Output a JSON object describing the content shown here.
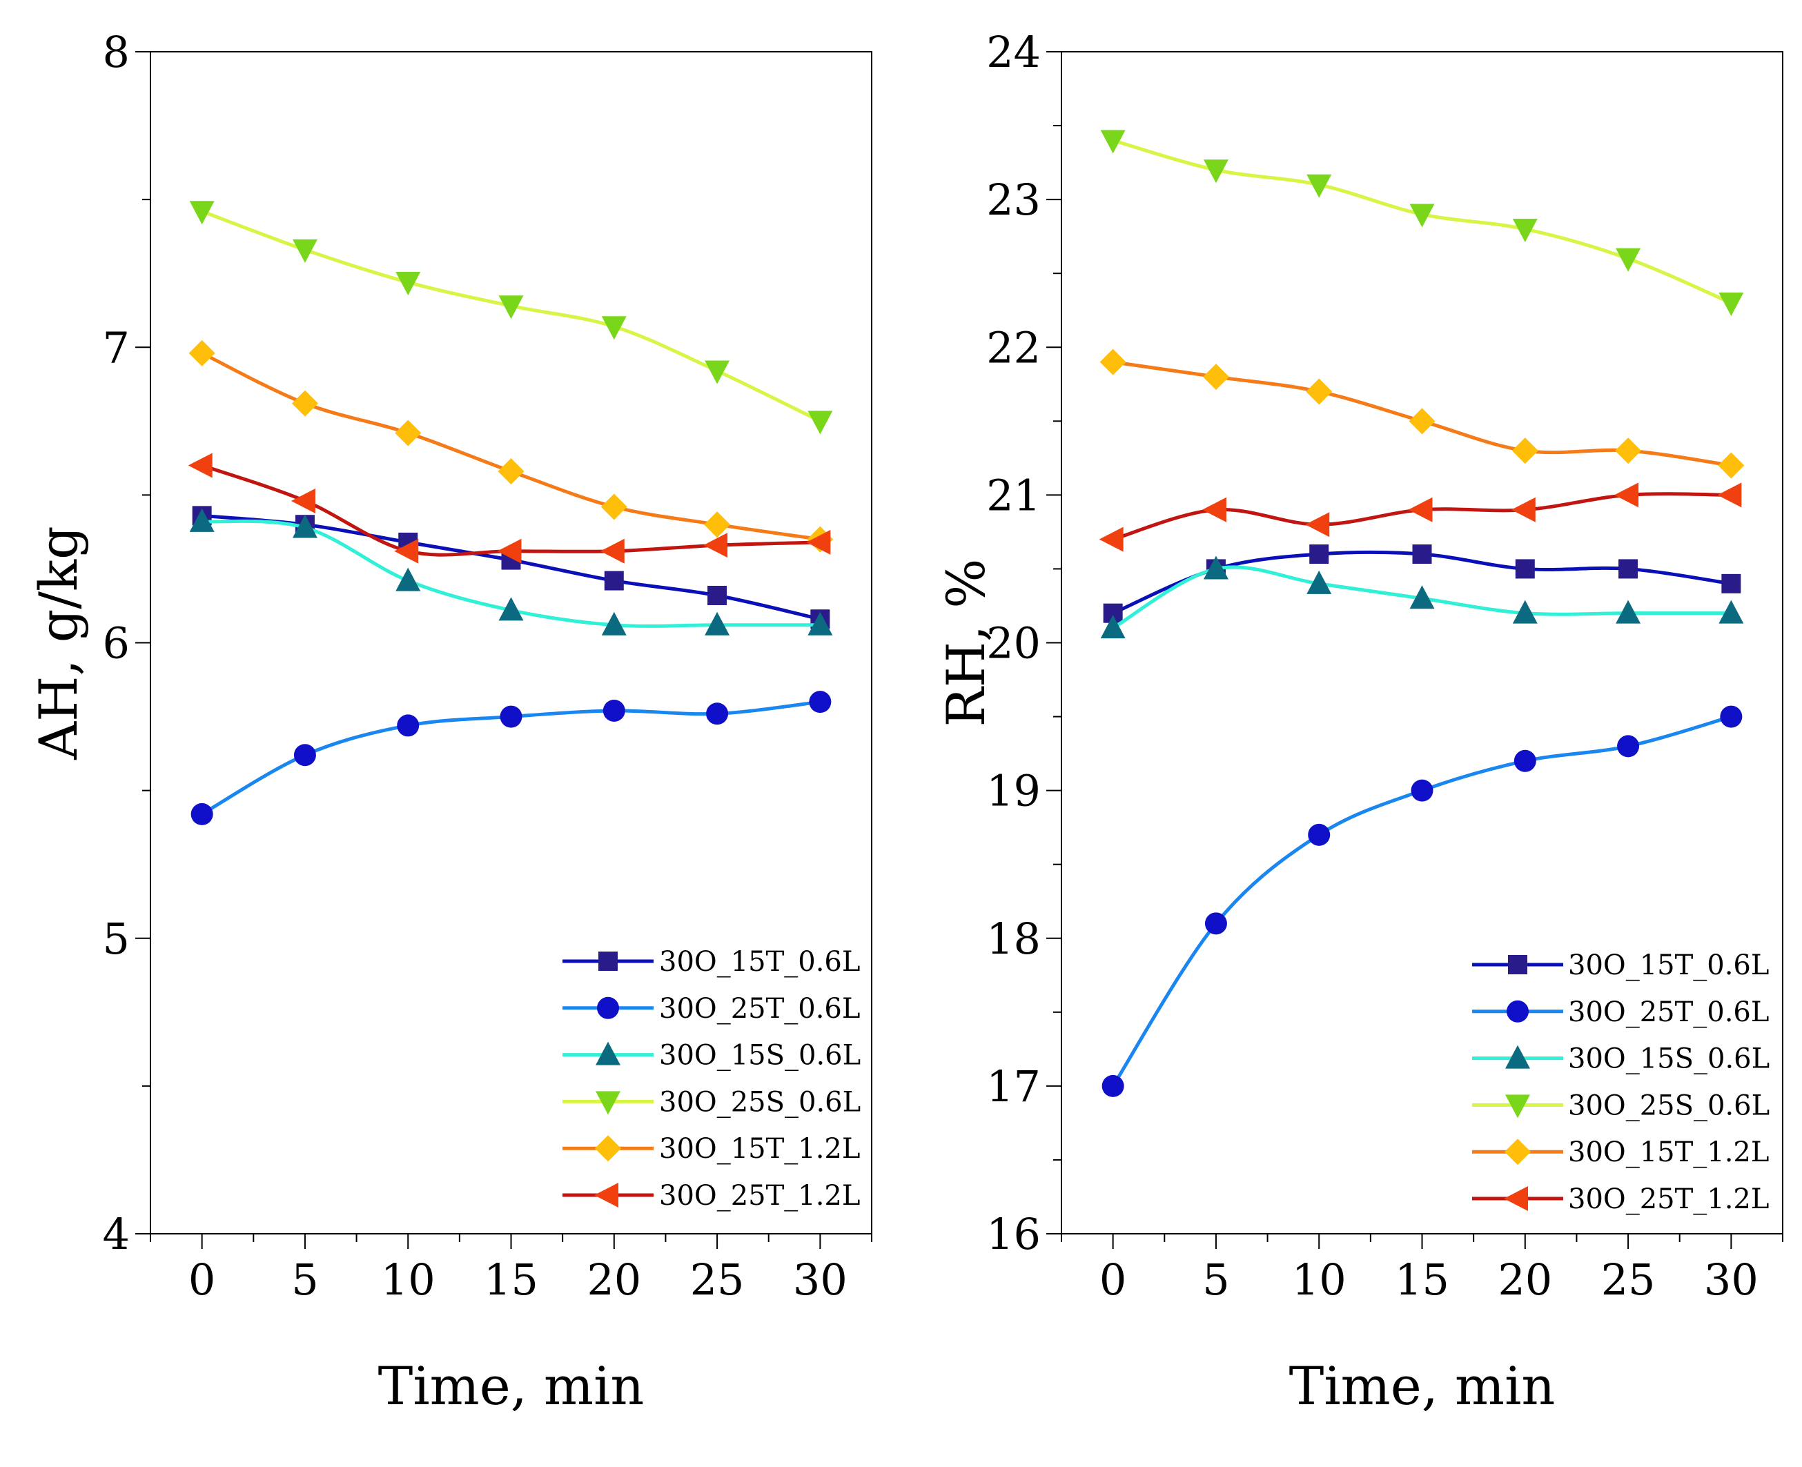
{
  "chart_data": [
    {
      "type": "line",
      "title": "",
      "xlabel": "Time, min",
      "ylabel": "AH, g/kg",
      "x": [
        0,
        5,
        10,
        15,
        20,
        25,
        30
      ],
      "xlim": [
        -2.5,
        32.5
      ],
      "ylim": [
        4,
        8
      ],
      "xticks": [
        "0",
        "5",
        "10",
        "15",
        "20",
        "25",
        "30"
      ],
      "yticks": [
        "4",
        "5",
        "6",
        "7",
        "8"
      ],
      "legend_position": "bottom-right",
      "series": [
        {
          "name": "30O_15T_0.6L",
          "marker": "square",
          "line_color": "#0a10b8",
          "marker_color": "#2a1b8a",
          "values": [
            6.43,
            6.4,
            6.34,
            6.28,
            6.21,
            6.16,
            6.08
          ]
        },
        {
          "name": "30O_25T_0.6L",
          "marker": "circle",
          "line_color": "#1a86f0",
          "marker_color": "#1010c8",
          "values": [
            5.42,
            5.62,
            5.72,
            5.75,
            5.77,
            5.76,
            5.8
          ]
        },
        {
          "name": "30O_15S_0.6L",
          "marker": "triangle-up",
          "line_color": "#30f0d8",
          "marker_color": "#0c6a80",
          "values": [
            6.41,
            6.39,
            6.21,
            6.11,
            6.06,
            6.06,
            6.06
          ]
        },
        {
          "name": "30O_25S_0.6L",
          "marker": "triangle-down",
          "line_color": "#d6f545",
          "marker_color": "#7ad61a",
          "values": [
            7.46,
            7.33,
            7.22,
            7.14,
            7.07,
            6.92,
            6.75
          ]
        },
        {
          "name": "30O_15T_1.2L",
          "marker": "diamond",
          "line_color": "#f57a18",
          "marker_color": "#ffbe0a",
          "values": [
            6.98,
            6.81,
            6.71,
            6.58,
            6.46,
            6.4,
            6.35
          ]
        },
        {
          "name": "30O_25T_1.2L",
          "marker": "triangle-left",
          "line_color": "#c01510",
          "marker_color": "#f04010",
          "values": [
            6.6,
            6.48,
            6.31,
            6.31,
            6.31,
            6.33,
            6.34
          ]
        }
      ]
    },
    {
      "type": "line",
      "title": "",
      "xlabel": "Time, min",
      "ylabel": "RH, %",
      "x": [
        0,
        5,
        10,
        15,
        20,
        25,
        30
      ],
      "xlim": [
        -2.5,
        32.5
      ],
      "ylim": [
        16,
        24
      ],
      "xticks": [
        "0",
        "5",
        "10",
        "15",
        "20",
        "25",
        "30"
      ],
      "yticks": [
        "16",
        "17",
        "18",
        "19",
        "20",
        "21",
        "22",
        "23",
        "24"
      ],
      "legend_position": "bottom-right",
      "series": [
        {
          "name": "30O_15T_0.6L",
          "marker": "square",
          "line_color": "#0a10b8",
          "marker_color": "#2a1b8a",
          "values": [
            20.2,
            20.5,
            20.6,
            20.6,
            20.5,
            20.5,
            20.4
          ]
        },
        {
          "name": "30O_25T_0.6L",
          "marker": "circle",
          "line_color": "#1a86f0",
          "marker_color": "#1010c8",
          "values": [
            17.0,
            18.1,
            18.7,
            19.0,
            19.2,
            19.3,
            19.5
          ]
        },
        {
          "name": "30O_15S_0.6L",
          "marker": "triangle-up",
          "line_color": "#30f0d8",
          "marker_color": "#0c6a80",
          "values": [
            20.1,
            20.5,
            20.4,
            20.3,
            20.2,
            20.2,
            20.2
          ]
        },
        {
          "name": "30O_25S_0.6L",
          "marker": "triangle-down",
          "line_color": "#d6f545",
          "marker_color": "#7ad61a",
          "values": [
            23.4,
            23.2,
            23.1,
            22.9,
            22.8,
            22.6,
            22.3
          ]
        },
        {
          "name": "30O_15T_1.2L",
          "marker": "diamond",
          "line_color": "#f57a18",
          "marker_color": "#ffbe0a",
          "values": [
            21.9,
            21.8,
            21.7,
            21.5,
            21.3,
            21.3,
            21.2
          ]
        },
        {
          "name": "30O_25T_1.2L",
          "marker": "triangle-left",
          "line_color": "#c01510",
          "marker_color": "#f04010",
          "values": [
            20.7,
            20.9,
            20.8,
            20.9,
            20.9,
            21.0,
            21.0
          ]
        }
      ]
    }
  ]
}
